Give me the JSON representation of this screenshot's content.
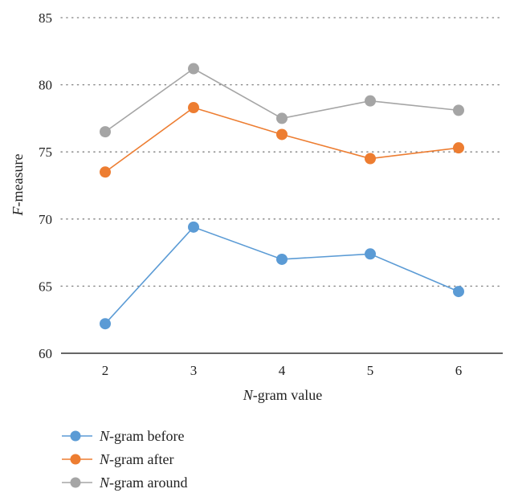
{
  "chart_data": {
    "type": "line",
    "x": [
      2,
      3,
      4,
      5,
      6
    ],
    "xlabel": {
      "italic": "N",
      "rest": "-gram value"
    },
    "ylabel": {
      "italic": "F",
      "rest": "-measure"
    },
    "ylim": [
      60,
      85
    ],
    "yticks": [
      60,
      65,
      70,
      75,
      80,
      85
    ],
    "grid": "horizontal-dotted",
    "legend_position": "bottom-left",
    "series": [
      {
        "name": "N-gram before",
        "legend_italic": "N",
        "legend_rest": "-gram before",
        "color": "#5b9bd5",
        "values": [
          62.2,
          69.4,
          67.0,
          67.4,
          64.6
        ]
      },
      {
        "name": "N-gram after",
        "legend_italic": "N",
        "legend_rest": "-gram after",
        "color": "#ed7d31",
        "values": [
          73.5,
          78.3,
          76.3,
          74.5,
          75.3
        ]
      },
      {
        "name": "N-gram around",
        "legend_italic": "N",
        "legend_rest": "-gram around",
        "color": "#a5a5a5",
        "values": [
          76.5,
          81.2,
          77.5,
          78.8,
          78.1
        ]
      }
    ]
  }
}
